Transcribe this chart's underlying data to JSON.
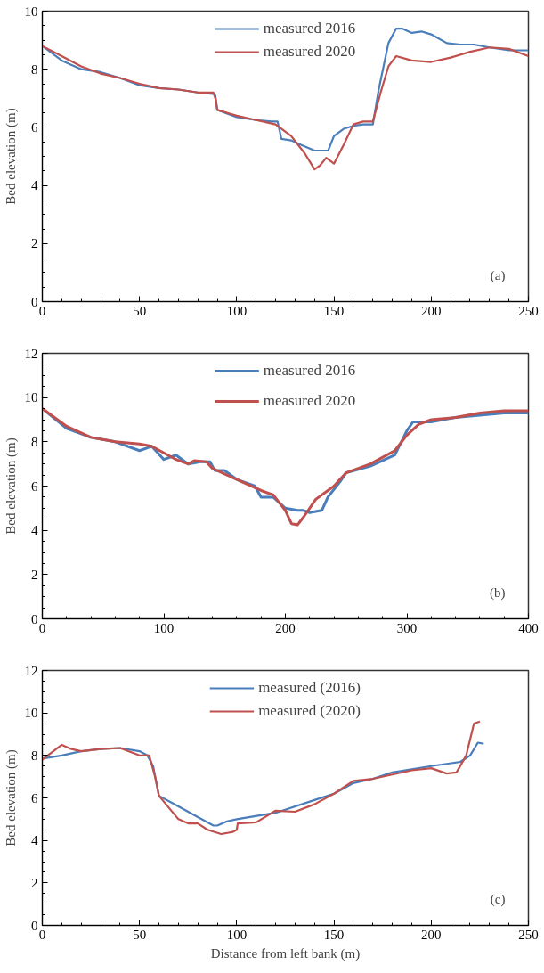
{
  "chart_data": [
    {
      "type": "line",
      "ylabel": "Bed elevation (m)",
      "annotations": [
        "(a)"
      ],
      "xlim": [
        0,
        250
      ],
      "ylim": [
        0,
        10
      ],
      "xticks": [
        0,
        50,
        100,
        150,
        200,
        250
      ],
      "yticks": [
        0,
        2,
        4,
        6,
        8,
        10
      ],
      "grid": false,
      "legend": "top",
      "marker": "none",
      "line_style": "solid",
      "series": [
        {
          "name": "measured 2016",
          "color": "#4a7ebb",
          "x": [
            0,
            10,
            20,
            30,
            40,
            50,
            60,
            70,
            80,
            88,
            89,
            90,
            100,
            110,
            118,
            121,
            123,
            128,
            133,
            140,
            147,
            150,
            155,
            160,
            165,
            170,
            173,
            178,
            182,
            185,
            190,
            195,
            200,
            208,
            215,
            222,
            230,
            240,
            250
          ],
          "values": [
            8.8,
            8.3,
            8.0,
            7.9,
            7.7,
            7.45,
            7.35,
            7.3,
            7.2,
            7.15,
            7.1,
            6.6,
            6.35,
            6.25,
            6.2,
            6.2,
            5.6,
            5.55,
            5.4,
            5.2,
            5.2,
            5.7,
            5.95,
            6.05,
            6.1,
            6.1,
            7.3,
            8.9,
            9.4,
            9.4,
            9.25,
            9.3,
            9.2,
            8.9,
            8.85,
            8.85,
            8.75,
            8.65,
            8.65
          ]
        },
        {
          "name": "measured 2020",
          "color": "#c0504d",
          "x": [
            0,
            10,
            20,
            30,
            40,
            50,
            60,
            70,
            80,
            88,
            89,
            90,
            100,
            110,
            120,
            128,
            135,
            140,
            143,
            146,
            150,
            155,
            160,
            165,
            170,
            174,
            178,
            182,
            190,
            200,
            210,
            220,
            230,
            240,
            250
          ],
          "values": [
            8.8,
            8.45,
            8.1,
            7.85,
            7.7,
            7.5,
            7.35,
            7.3,
            7.2,
            7.2,
            7.0,
            6.6,
            6.4,
            6.25,
            6.1,
            5.7,
            5.1,
            4.55,
            4.7,
            4.95,
            4.75,
            5.4,
            6.1,
            6.2,
            6.2,
            7.2,
            8.1,
            8.45,
            8.3,
            8.25,
            8.4,
            8.6,
            8.75,
            8.7,
            8.45
          ]
        }
      ]
    },
    {
      "type": "line",
      "ylabel": "Bed elevation (m)",
      "annotations": [
        "(b)"
      ],
      "xlim": [
        0,
        400
      ],
      "ylim": [
        0,
        12
      ],
      "xticks": [
        0,
        100,
        200,
        300,
        400
      ],
      "yticks": [
        0,
        2,
        4,
        6,
        8,
        10,
        12
      ],
      "grid": false,
      "legend": "top",
      "marker": "none",
      "line_style": "solid",
      "series": [
        {
          "name": "measured 2016",
          "color": "#4a7ebb",
          "x": [
            0,
            20,
            40,
            60,
            80,
            90,
            100,
            110,
            120,
            130,
            138,
            142,
            150,
            160,
            175,
            180,
            190,
            200,
            210,
            215,
            220,
            230,
            235,
            245,
            250,
            270,
            290,
            300,
            305,
            310,
            320,
            340,
            360,
            380,
            400
          ],
          "values": [
            9.5,
            8.6,
            8.2,
            8.0,
            7.6,
            7.8,
            7.2,
            7.4,
            7.0,
            7.1,
            7.1,
            6.7,
            6.7,
            6.3,
            6.0,
            5.5,
            5.5,
            5.0,
            4.9,
            4.9,
            4.8,
            4.9,
            5.5,
            6.2,
            6.6,
            6.9,
            7.4,
            8.5,
            8.9,
            8.9,
            8.9,
            9.1,
            9.2,
            9.3,
            9.3
          ]
        },
        {
          "name": "measured 2020",
          "color": "#c0504d",
          "x": [
            0,
            20,
            40,
            60,
            80,
            90,
            100,
            110,
            120,
            125,
            135,
            140,
            160,
            180,
            190,
            200,
            205,
            210,
            215,
            225,
            240,
            250,
            270,
            290,
            300,
            310,
            320,
            340,
            360,
            380,
            400
          ],
          "values": [
            9.5,
            8.7,
            8.2,
            8.0,
            7.9,
            7.8,
            7.5,
            7.2,
            7.0,
            7.15,
            7.1,
            6.8,
            6.3,
            5.8,
            5.6,
            4.9,
            4.3,
            4.25,
            4.6,
            5.4,
            6.0,
            6.6,
            7.0,
            7.6,
            8.3,
            8.8,
            9.0,
            9.1,
            9.3,
            9.4,
            9.4
          ]
        }
      ]
    },
    {
      "type": "line",
      "xlabel": "Distance from left bank (m)",
      "ylabel": "Bed elevation (m)",
      "annotations": [
        "(c)"
      ],
      "xlim": [
        0,
        250
      ],
      "ylim": [
        0,
        12
      ],
      "xticks": [
        0,
        50,
        100,
        150,
        200,
        250
      ],
      "yticks": [
        0,
        2,
        4,
        6,
        8,
        10,
        12
      ],
      "grid": false,
      "legend": "top",
      "marker": "none",
      "line_style": "solid",
      "series": [
        {
          "name": "measured (2016)",
          "color": "#4a7ebb",
          "x": [
            0,
            10,
            20,
            30,
            40,
            50,
            54,
            57,
            60,
            70,
            80,
            88,
            90,
            95,
            100,
            120,
            140,
            150,
            160,
            170,
            180,
            200,
            215,
            220,
            224,
            227
          ],
          "values": [
            7.85,
            8.0,
            8.2,
            8.3,
            8.35,
            8.2,
            8.0,
            7.5,
            6.1,
            5.6,
            5.1,
            4.7,
            4.7,
            4.9,
            5.0,
            5.3,
            5.9,
            6.2,
            6.7,
            6.9,
            7.2,
            7.5,
            7.7,
            8.0,
            8.6,
            8.55
          ]
        },
        {
          "name": "measured (2020)",
          "color": "#c0504d",
          "x": [
            0,
            10,
            15,
            20,
            30,
            40,
            50,
            55,
            58,
            60,
            70,
            75,
            80,
            85,
            92,
            98,
            100,
            100.5,
            110,
            120,
            130,
            140,
            150,
            160,
            170,
            180,
            190,
            200,
            208,
            213,
            218,
            222,
            225
          ],
          "values": [
            7.8,
            8.5,
            8.3,
            8.2,
            8.3,
            8.35,
            8.0,
            8.0,
            7.0,
            6.1,
            5.0,
            4.8,
            4.8,
            4.5,
            4.3,
            4.4,
            4.5,
            4.8,
            4.85,
            5.4,
            5.35,
            5.7,
            6.2,
            6.8,
            6.9,
            7.1,
            7.3,
            7.4,
            7.15,
            7.2,
            8.0,
            9.5,
            9.6
          ]
        }
      ]
    }
  ]
}
